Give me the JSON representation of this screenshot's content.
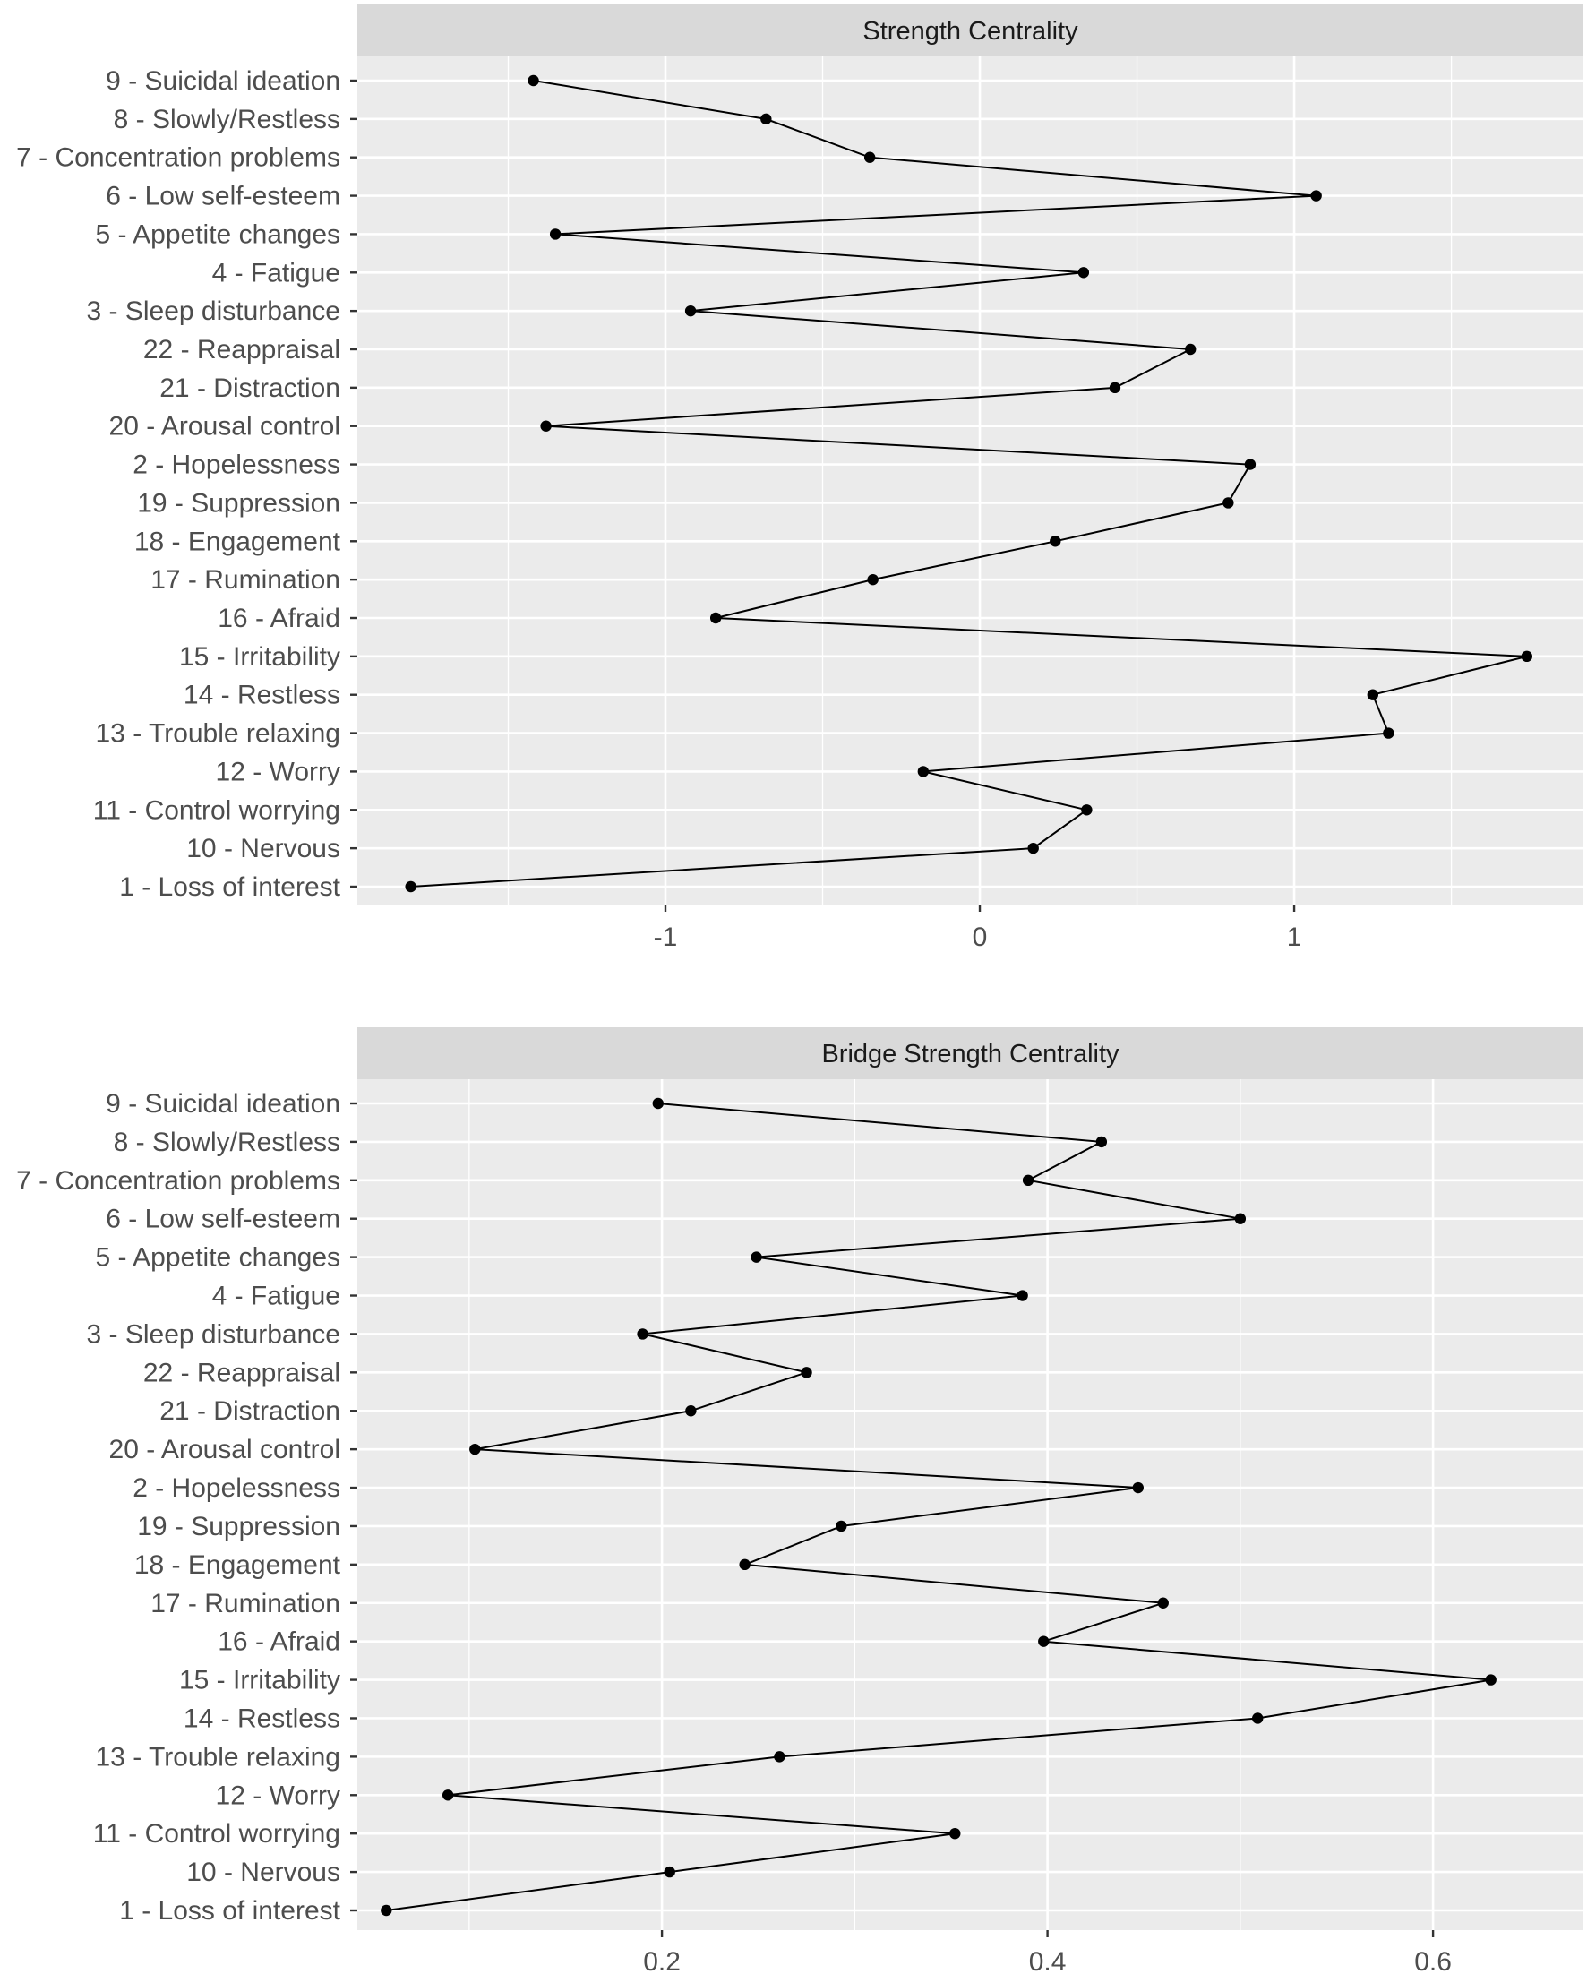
{
  "chart_data": [
    {
      "type": "line",
      "orientation": "horizontal",
      "title": "Strength Centrality",
      "xlabel": "",
      "ylabel": "",
      "xlim": [
        -1.98,
        1.92
      ],
      "x_ticks": [
        -1,
        0,
        1
      ],
      "x_tick_labels": [
        "-1",
        "0",
        "1"
      ],
      "x_minor": [
        -1.5,
        -0.5,
        0.5,
        1.5
      ],
      "grid": true,
      "categories": [
        "9 - Suicidal ideation",
        "8 - Slowly/Restless",
        "7 - Concentration problems",
        "6 - Low self-esteem",
        "5 - Appetite changes",
        "4 - Fatigue",
        "3 - Sleep disturbance",
        "22 - Reappraisal",
        "21 - Distraction",
        "20 - Arousal control",
        "2 - Hopelessness",
        "19 - Suppression",
        "18 - Engagement",
        "17 - Rumination",
        "16 - Afraid",
        "15 - Irritability",
        "14 - Restless",
        "13 - Trouble relaxing",
        "12 - Worry",
        "11 - Control worrying",
        "10 - Nervous",
        "1 - Loss of interest"
      ],
      "values": [
        -1.42,
        -0.68,
        -0.35,
        1.07,
        -1.35,
        0.33,
        -0.92,
        0.67,
        0.43,
        -1.38,
        0.86,
        0.79,
        0.24,
        -0.34,
        -0.84,
        1.74,
        1.25,
        1.3,
        -0.18,
        0.34,
        0.17,
        -1.81
      ]
    },
    {
      "type": "line",
      "orientation": "horizontal",
      "title": "Bridge Strength Centrality",
      "xlabel": "",
      "ylabel": "",
      "xlim": [
        0.042,
        0.678
      ],
      "x_ticks": [
        0.2,
        0.4,
        0.6
      ],
      "x_tick_labels": [
        "0.2",
        "0.4",
        "0.6"
      ],
      "x_minor": [
        0.1,
        0.3,
        0.5
      ],
      "grid": true,
      "categories": [
        "9 - Suicidal ideation",
        "8 - Slowly/Restless",
        "7 - Concentration problems",
        "6 - Low self-esteem",
        "5 - Appetite changes",
        "4 - Fatigue",
        "3 - Sleep disturbance",
        "22 - Reappraisal",
        "21 - Distraction",
        "20 - Arousal control",
        "2 - Hopelessness",
        "19 - Suppression",
        "18 - Engagement",
        "17 - Rumination",
        "16 - Afraid",
        "15 - Irritability",
        "14 - Restless",
        "13 - Trouble relaxing",
        "12 - Worry",
        "11 - Control worrying",
        "10 - Nervous",
        "1 - Loss of interest"
      ],
      "values": [
        0.198,
        0.428,
        0.39,
        0.5,
        0.249,
        0.387,
        0.19,
        0.275,
        0.215,
        0.103,
        0.447,
        0.293,
        0.243,
        0.46,
        0.398,
        0.63,
        0.509,
        0.261,
        0.089,
        0.352,
        0.204,
        0.057
      ]
    }
  ]
}
